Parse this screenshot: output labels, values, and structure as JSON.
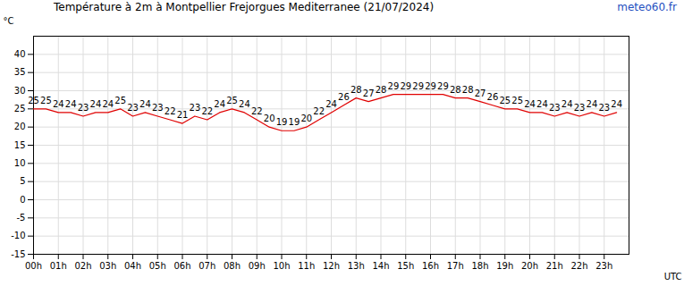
{
  "chart_data": {
    "type": "line",
    "title": "Température à 2m à Montpellier Frejorgues Mediterranee (21/07/2024)",
    "annotations": [
      "meteo60.fr"
    ],
    "x_label": "UTC",
    "y_label": "°C",
    "x": [
      0,
      0.5,
      1,
      1.5,
      2,
      2.5,
      3,
      3.5,
      4,
      4.5,
      5,
      5.5,
      6,
      6.5,
      7,
      7.5,
      8,
      8.5,
      9,
      9.5,
      10,
      10.5,
      11,
      11.5,
      12,
      12.5,
      13,
      13.5,
      14,
      14.5,
      15,
      15.5,
      16,
      16.5,
      17,
      17.5,
      18,
      18.5,
      19,
      19.5,
      20,
      20.5,
      21,
      21.5,
      22,
      22.5,
      23,
      23.5
    ],
    "values": [
      25,
      25,
      24,
      24,
      23,
      24,
      24,
      25,
      23,
      24,
      23,
      22,
      21,
      23,
      22,
      24,
      25,
      24,
      22,
      20,
      19,
      19,
      20,
      22,
      24,
      26,
      28,
      27,
      28,
      29,
      29,
      29,
      29,
      29,
      28,
      28,
      27,
      26,
      25,
      25,
      24,
      24,
      23,
      24,
      23,
      24,
      23,
      24
    ],
    "color": "#e00000",
    "data_labels": true,
    "grid": true,
    "xlim": [
      0,
      24
    ],
    "xticks": [
      {
        "value": 0,
        "label": "00h"
      },
      {
        "value": 1,
        "label": "01h"
      },
      {
        "value": 2,
        "label": "02h"
      },
      {
        "value": 3,
        "label": "03h"
      },
      {
        "value": 4,
        "label": "04h"
      },
      {
        "value": 5,
        "label": "05h"
      },
      {
        "value": 6,
        "label": "06h"
      },
      {
        "value": 7,
        "label": "07h"
      },
      {
        "value": 8,
        "label": "08h"
      },
      {
        "value": 9,
        "label": "09h"
      },
      {
        "value": 10,
        "label": "10h"
      },
      {
        "value": 11,
        "label": "11h"
      },
      {
        "value": 12,
        "label": "12h"
      },
      {
        "value": 13,
        "label": "13h"
      },
      {
        "value": 14,
        "label": "14h"
      },
      {
        "value": 15,
        "label": "15h"
      },
      {
        "value": 16,
        "label": "16h"
      },
      {
        "value": 17,
        "label": "17h"
      },
      {
        "value": 18,
        "label": "18h"
      },
      {
        "value": 19,
        "label": "19h"
      },
      {
        "value": 20,
        "label": "20h"
      },
      {
        "value": 21,
        "label": "21h"
      },
      {
        "value": 22,
        "label": "22h"
      },
      {
        "value": 23,
        "label": "23h"
      }
    ],
    "ylim": [
      -15,
      45
    ],
    "yticks": [
      -15,
      -10,
      -5,
      0,
      5,
      10,
      15,
      20,
      25,
      30,
      35,
      40
    ]
  }
}
